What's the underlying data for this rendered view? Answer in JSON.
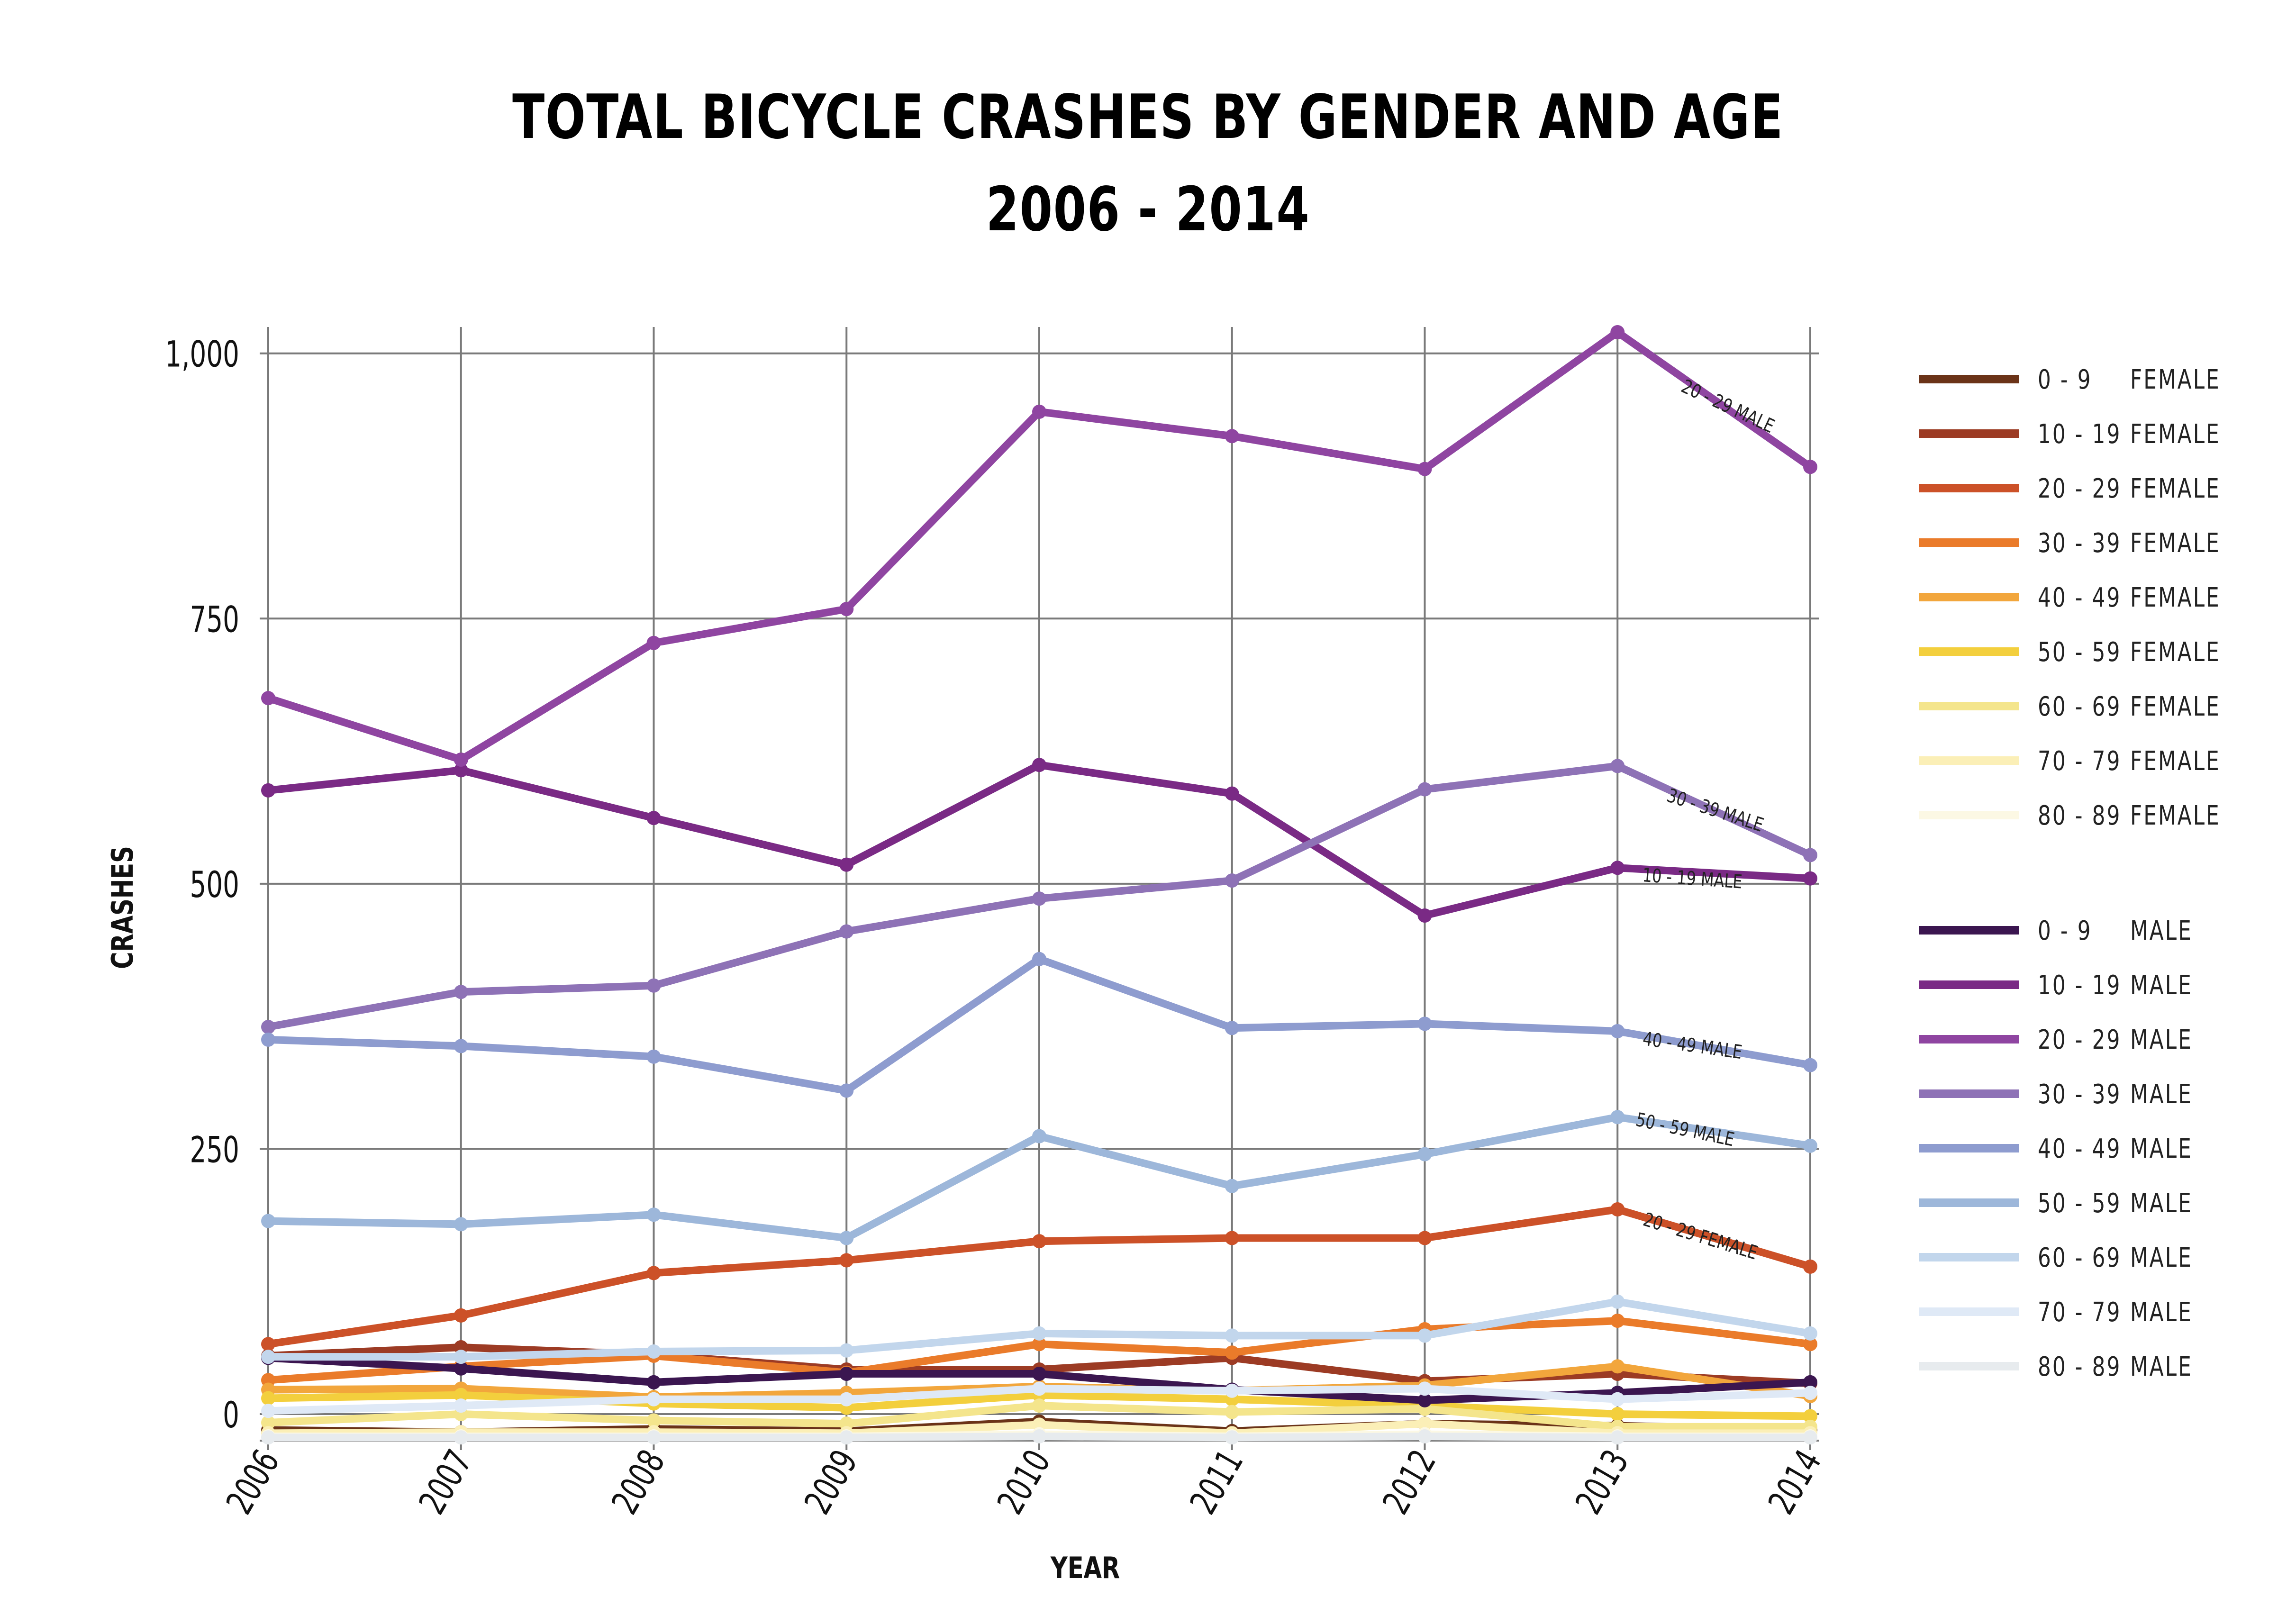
{
  "chart_data": {
    "type": "line",
    "title": "TOTAL BICYCLE CRASHES BY GENDER AND AGE",
    "subtitle": "2006 - 2014",
    "xlabel": "YEAR",
    "ylabel": "CRASHES",
    "categories": [
      "2006",
      "2007",
      "2008",
      "2009",
      "2010",
      "2011",
      "2012",
      "2013",
      "2014"
    ],
    "ylim": [
      -25,
      1045
    ],
    "yticks": [
      {
        "value": 0,
        "label": "0"
      },
      {
        "value": 250,
        "label": "250"
      },
      {
        "value": 500,
        "label": "500"
      },
      {
        "value": 750,
        "label": "750"
      },
      {
        "value": 1000,
        "label": "1,000"
      }
    ],
    "grid": "on",
    "legend_position": "right",
    "series": [
      {
        "name": "0 - 9",
        "gender": "FEMALE",
        "color": "#6b3318",
        "values": [
          -15,
          -17,
          -14,
          -16,
          -7,
          -16,
          -9,
          -11,
          -15
        ]
      },
      {
        "name": "10 - 19",
        "gender": "FEMALE",
        "color": "#9c3b24",
        "values": [
          55,
          63,
          56,
          42,
          42,
          53,
          31,
          38,
          29
        ]
      },
      {
        "name": "20 - 29",
        "gender": "FEMALE",
        "color": "#cc5128",
        "values": [
          66,
          93,
          133,
          145,
          163,
          166,
          166,
          193,
          139
        ]
      },
      {
        "name": "30 - 39",
        "gender": "FEMALE",
        "color": "#ea7b2a",
        "values": [
          32,
          45,
          55,
          39,
          66,
          58,
          80,
          88,
          66
        ]
      },
      {
        "name": "40 - 49",
        "gender": "FEMALE",
        "color": "#f2a63c",
        "values": [
          23,
          24,
          16,
          20,
          26,
          22,
          27,
          45,
          17
        ]
      },
      {
        "name": "50 - 59",
        "gender": "FEMALE",
        "color": "#f3cf3d",
        "values": [
          15,
          18,
          10,
          6,
          18,
          14,
          8,
          0,
          -2
        ]
      },
      {
        "name": "60 - 69",
        "gender": "FEMALE",
        "color": "#f4e58c",
        "values": [
          -8,
          0,
          -6,
          -9,
          8,
          2,
          5,
          -12,
          -12
        ]
      },
      {
        "name": "70 - 79",
        "gender": "FEMALE",
        "color": "#fbefb7",
        "values": [
          -18,
          -17,
          -17,
          -18,
          -10,
          -18,
          -9,
          -18,
          -18
        ]
      },
      {
        "name": "80 - 89",
        "gender": "FEMALE",
        "color": "#fcf8e4",
        "values": [
          -21,
          -21,
          -21,
          -21,
          -19,
          -21,
          -19,
          -21,
          -21
        ]
      },
      {
        "name": "0 - 9",
        "gender": "MALE",
        "color": "#3b1650",
        "values": [
          53,
          43,
          30,
          38,
          38,
          23,
          13,
          20,
          30
        ]
      },
      {
        "name": "10 - 19",
        "gender": "MALE",
        "color": "#7a2a85",
        "values": [
          588,
          607,
          562,
          518,
          612,
          585,
          470,
          515,
          505
        ]
      },
      {
        "name": "20 - 29",
        "gender": "MALE",
        "color": "#8f45a1",
        "values": [
          675,
          617,
          727,
          759,
          945,
          922,
          891,
          1020,
          893
        ]
      },
      {
        "name": "30 - 39",
        "gender": "MALE",
        "color": "#8e72b6",
        "values": [
          365,
          398,
          404,
          455,
          486,
          503,
          589,
          611,
          527
        ]
      },
      {
        "name": "40 - 49",
        "gender": "MALE",
        "color": "#8e9ccf",
        "values": [
          353,
          347,
          337,
          305,
          429,
          364,
          368,
          361,
          329
        ]
      },
      {
        "name": "50 - 59",
        "gender": "MALE",
        "color": "#9db7da",
        "values": [
          182,
          179,
          188,
          166,
          262,
          215,
          245,
          280,
          253
        ]
      },
      {
        "name": "60 - 69",
        "gender": "MALE",
        "color": "#c2d6ec",
        "values": [
          54,
          54,
          59,
          60,
          76,
          74,
          74,
          106,
          76
        ]
      },
      {
        "name": "70 - 79",
        "gender": "MALE",
        "color": "#dfe9f6",
        "values": [
          3,
          8,
          14,
          14,
          24,
          22,
          24,
          14,
          20
        ]
      },
      {
        "name": "80 - 89",
        "gender": "MALE",
        "color": "#e7ebee",
        "values": [
          -22,
          -22,
          -22,
          -22,
          -21,
          -22,
          -21,
          -22,
          -22
        ]
      }
    ],
    "annotations": [
      {
        "text": "20 - 29  MALE",
        "series": "20 - 29 MALE"
      },
      {
        "text": "30 - 39 MALE",
        "series": "30 - 39 MALE"
      },
      {
        "text": "10 - 19 MALE",
        "series": "10 - 19 MALE"
      },
      {
        "text": "40 - 49 MALE",
        "series": "40 - 49 MALE"
      },
      {
        "text": "50 - 59 MALE",
        "series": "50 - 59 MALE"
      },
      {
        "text": "20 - 29 FEMALE",
        "series": "20 - 29 FEMALE"
      }
    ]
  }
}
